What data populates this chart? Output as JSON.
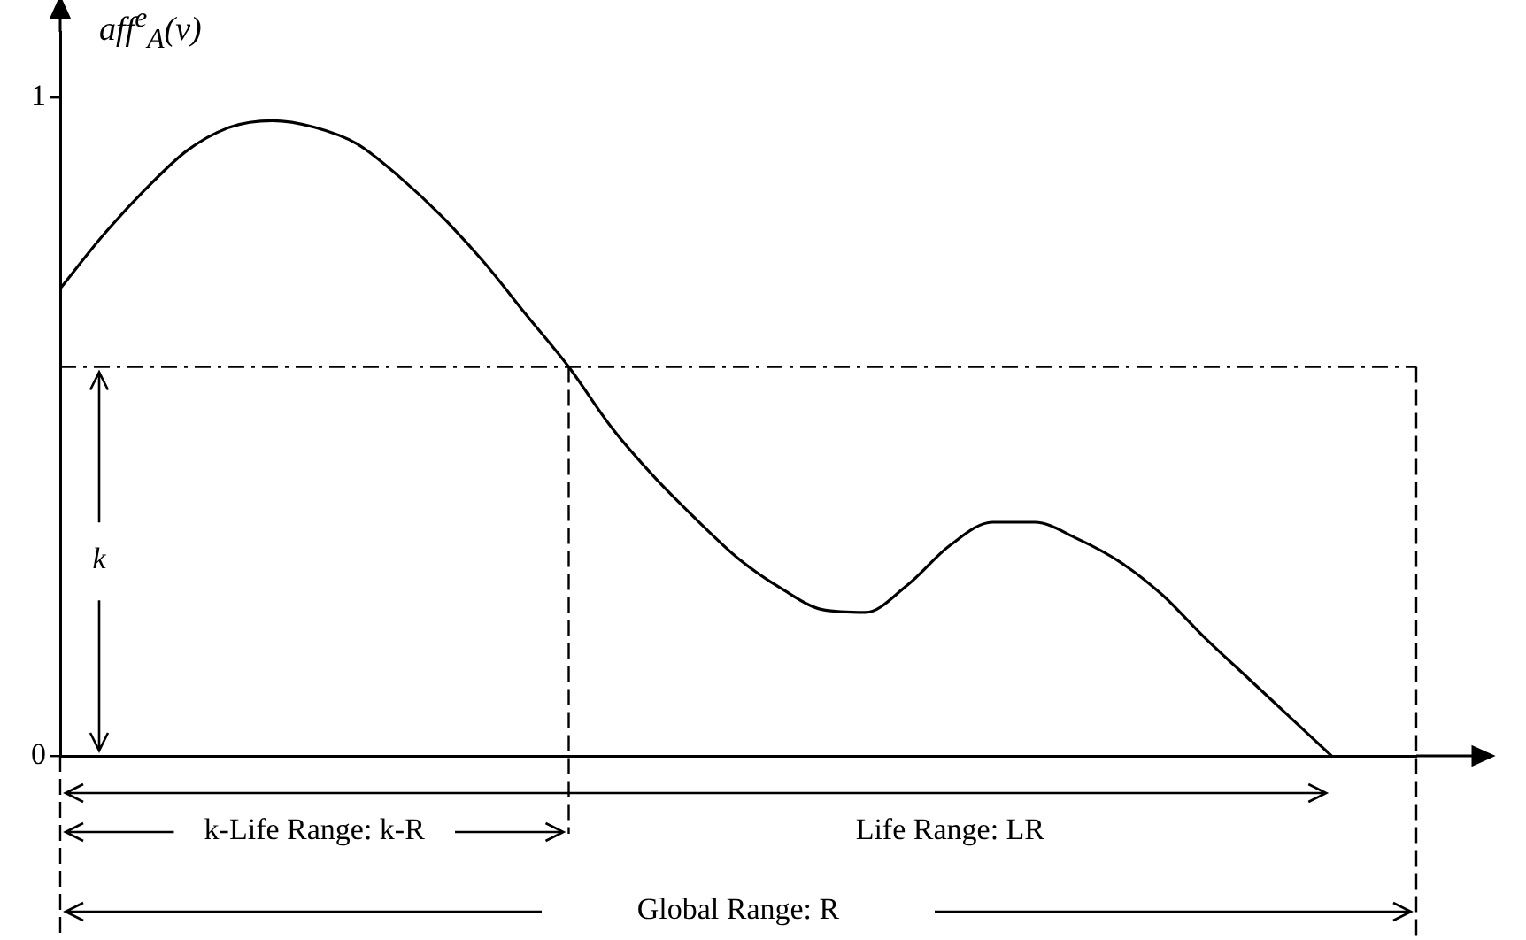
{
  "chart_data": {
    "type": "line",
    "ylabel": "aff$^{e}$$_{A}$(v)",
    "categories": [
      null,
      null,
      null,
      null,
      null,
      null,
      null,
      null,
      null,
      null,
      null,
      null,
      null,
      null,
      null,
      null,
      null,
      null,
      null,
      null,
      null,
      null,
      null,
      null,
      null,
      null,
      null,
      null,
      null,
      null,
      null,
      null,
      null
    ],
    "series": [
      {
        "color": "#000000",
        "values": [
          0.71,
          0.79,
          0.86,
          0.92,
          0.955,
          0.965,
          0.955,
          0.93,
          0.88,
          0.82,
          0.75,
          0.67,
          0.591,
          0.5,
          0.425,
          0.36,
          0.3,
          0.255,
          0.222,
          0.218,
          0.26,
          0.32,
          0.355,
          0.355,
          0.33,
          0.295,
          0.245,
          0.18,
          0.12,
          0.06,
          0,
          null,
          null
        ]
      }
    ],
    "ylim": [
      0,
      1.1
    ],
    "yticks": [
      0,
      1
    ],
    "tick_labels": "y",
    "legend": false,
    "marker": "none",
    "line_style": "solid",
    "ref_lines": [
      {
        "axis": "y",
        "value": 0.591,
        "line_style": "dashed",
        "color": "#000000"
      }
    ],
    "annotations": [
      "k",
      "k-Life Range: k-R",
      "Life Range: LR",
      "Global Range: R"
    ]
  }
}
